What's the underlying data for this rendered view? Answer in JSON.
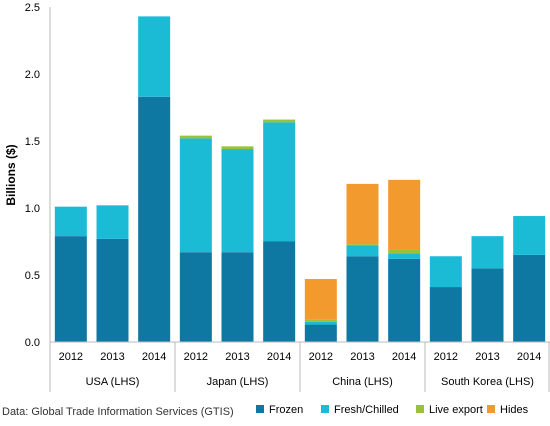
{
  "chart_data": {
    "type": "bar",
    "stacked": true,
    "ylabel": "Billions ($)",
    "ylim": [
      0,
      2.5
    ],
    "yticks": [
      "0.0",
      "0.5",
      "1.0",
      "1.5",
      "2.0",
      "2.5"
    ],
    "grid": false,
    "legend_position": "bottom-right",
    "groups": [
      {
        "label": "USA (LHS)",
        "categories": [
          "2012",
          "2013",
          "2014"
        ]
      },
      {
        "label": "Japan (LHS)",
        "categories": [
          "2012",
          "2013",
          "2014"
        ]
      },
      {
        "label": "China (LHS)",
        "categories": [
          "2012",
          "2013",
          "2014"
        ]
      },
      {
        "label": "South Korea (LHS)",
        "categories": [
          "2012",
          "2013",
          "2014"
        ]
      }
    ],
    "series": [
      {
        "name": "Frozen",
        "color": "#0e77a2",
        "values": [
          0.79,
          0.77,
          1.83,
          0.67,
          0.67,
          0.75,
          0.13,
          0.64,
          0.62,
          0.41,
          0.55,
          0.65
        ]
      },
      {
        "name": "Fresh/Chilled",
        "color": "#1bbbd6",
        "values": [
          0.22,
          0.25,
          0.6,
          0.85,
          0.77,
          0.89,
          0.02,
          0.08,
          0.04,
          0.23,
          0.24,
          0.29
        ]
      },
      {
        "name": "Live export",
        "color": "#99c13c",
        "values": [
          0.0,
          0.0,
          0.0,
          0.02,
          0.02,
          0.02,
          0.02,
          0.01,
          0.03,
          0.0,
          0.0,
          0.0
        ]
      },
      {
        "name": "Hides",
        "color": "#f39a2e",
        "values": [
          0.0,
          0.0,
          0.0,
          0.0,
          0.0,
          0.0,
          0.3,
          0.45,
          0.52,
          0.0,
          0.0,
          0.0
        ]
      }
    ]
  },
  "source_note": "Data: Global Trade Information Services (GTIS)"
}
